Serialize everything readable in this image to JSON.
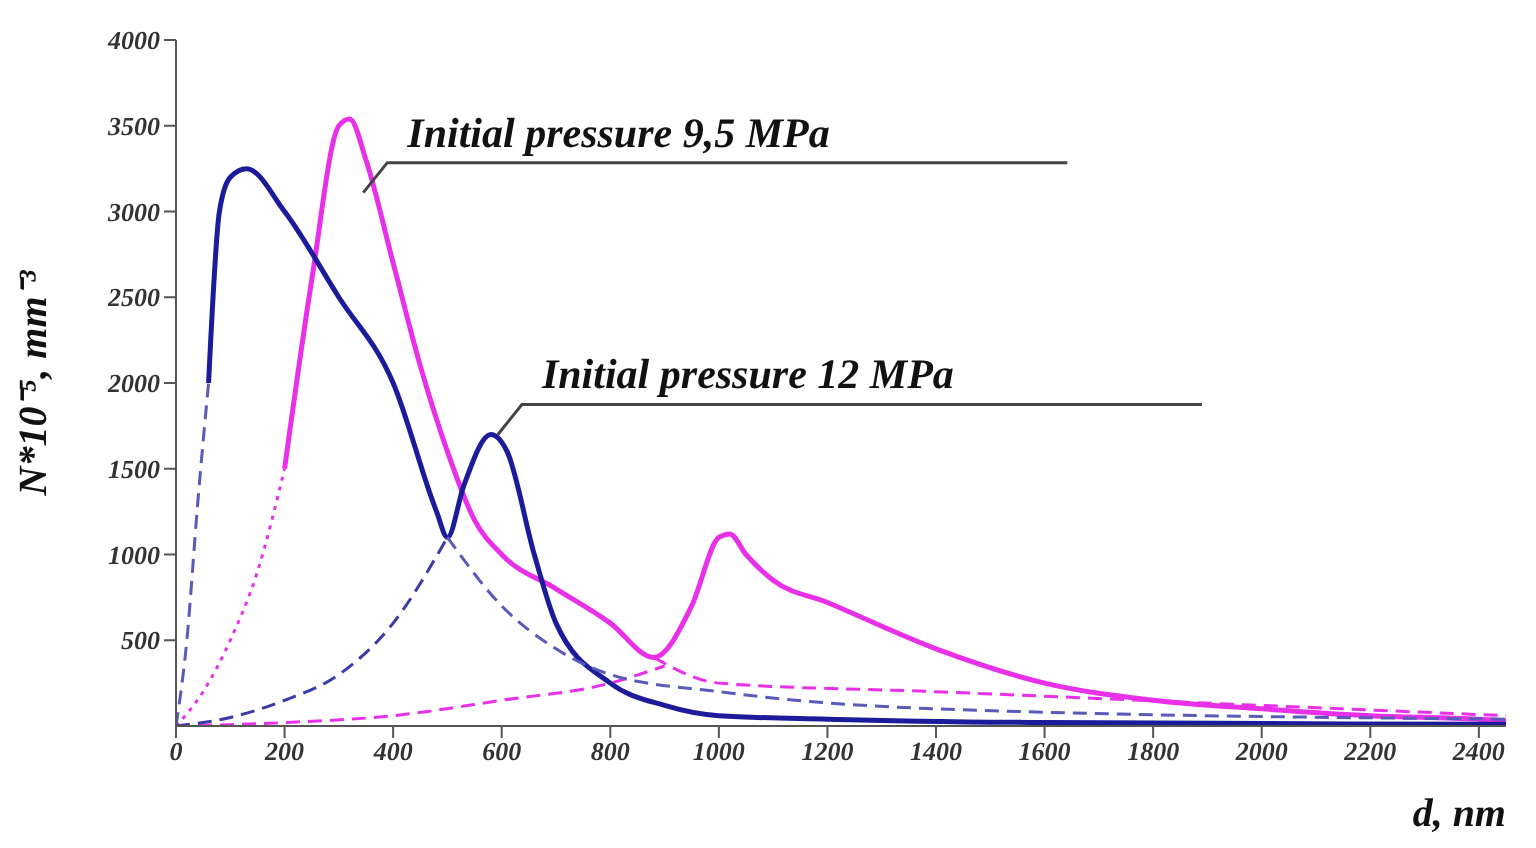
{
  "chart_data": {
    "type": "line",
    "xlabel": "d, nm",
    "ylabel": "N*10⁻⁵, mm⁻³",
    "xlim": [
      0,
      2450
    ],
    "ylim": [
      0,
      4000
    ],
    "xticks": [
      0,
      200,
      400,
      600,
      800,
      1000,
      1200,
      1400,
      1600,
      1800,
      2000,
      2200,
      2400
    ],
    "yticks": [
      500,
      1000,
      1500,
      2000,
      2500,
      3000,
      3500,
      4000
    ],
    "marker": "none",
    "annotations": [
      {
        "text": "Initial pressure 9,5 MPa",
        "x": 345,
        "y": 3110
      },
      {
        "text": "Initial pressure 12 MPa",
        "x": 593,
        "y": 1700
      }
    ],
    "series": [
      {
        "color": "#e830e8",
        "line_style": "solid",
        "x": [
          200,
          250,
          300,
          320,
          350,
          400,
          450,
          500,
          550,
          600,
          700,
          800,
          880,
          950,
          1000,
          1020,
          1050,
          1100,
          1200,
          1400,
          1600,
          1800,
          2000,
          2200,
          2400,
          2450
        ],
        "values": [
          1500,
          2600,
          3500,
          3540,
          3300,
          2700,
          2100,
          1600,
          1200,
          1000,
          800,
          600,
          400,
          700,
          1100,
          1120,
          1000,
          850,
          720,
          450,
          250,
          150,
          100,
          60,
          40,
          30
        ]
      },
      {
        "color": "#e830e8",
        "line_style": "dotted",
        "x": [
          0,
          50,
          100,
          150,
          200
        ],
        "values": [
          0,
          200,
          500,
          900,
          1500
        ]
      },
      {
        "color": "#e830e8",
        "line_style": "dashed",
        "x": [
          0,
          200,
          400,
          600,
          800,
          900
        ],
        "values": [
          0,
          20,
          60,
          150,
          250,
          350
        ]
      },
      {
        "color": "#e830e8",
        "line_style": "dashed",
        "x": [
          880,
          1000,
          1400,
          2000,
          2450
        ],
        "values": [
          400,
          250,
          200,
          120,
          60
        ]
      },
      {
        "color": "#1c1c9a",
        "line_style": "solid",
        "x": [
          60,
          80,
          100,
          130,
          200,
          300,
          400,
          480,
          500,
          530,
          580,
          610,
          660,
          700,
          800,
          900,
          1000,
          1200,
          1600,
          2450
        ],
        "values": [
          2000,
          3000,
          3200,
          3250,
          3000,
          2500,
          2000,
          1250,
          1100,
          1400,
          1700,
          1600,
          1000,
          600,
          250,
          120,
          60,
          40,
          20,
          10
        ]
      },
      {
        "color": "#5a5ab8",
        "line_style": "dashed",
        "x": [
          0,
          20,
          40,
          60
        ],
        "values": [
          0,
          500,
          1300,
          2000
        ]
      },
      {
        "color": "#5a5ab8",
        "line_style": "dashed",
        "x": [
          500,
          600,
          700,
          800,
          1000,
          1400,
          2450
        ],
        "values": [
          1100,
          700,
          450,
          300,
          200,
          100,
          40
        ]
      },
      {
        "color": "#3a3aa8",
        "line_style": "dashed",
        "x": [
          0,
          100,
          200,
          300,
          400,
          500
        ],
        "values": [
          0,
          50,
          150,
          300,
          600,
          1100
        ]
      }
    ]
  }
}
